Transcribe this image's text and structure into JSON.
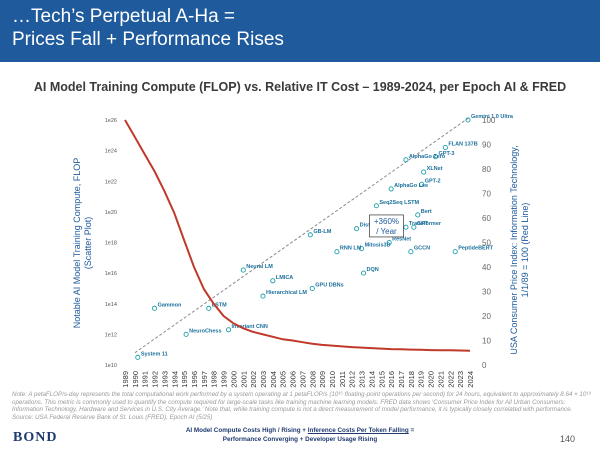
{
  "header": {
    "line1": "…Tech’s Perpetual A-Ha =",
    "line2": "Prices Fall + Performance Rises",
    "bg_color": "#1e5a9c"
  },
  "chart_data": {
    "type": "scatter",
    "title": "AI Model Training Compute (FLOP) vs. Relative IT Cost – 1989-2024, per Epoch AI & FRED",
    "ylabel_left": [
      "Notable AI Model Training Compute, FLOP",
      "(Scatter Plot)"
    ],
    "ylabel_right": [
      "USA Consumer Price Index: Information Technology,",
      "1/1/89 = 100 (Red Line)"
    ],
    "x_categories": [
      "1989",
      "1990",
      "1991",
      "1992",
      "1993",
      "1994",
      "1995",
      "1996",
      "1997",
      "1998",
      "1999",
      "2000",
      "2001",
      "2002",
      "2003",
      "2004",
      "2005",
      "2006",
      "2007",
      "2008",
      "2009",
      "2010",
      "2011",
      "2012",
      "2013",
      "2014",
      "2015",
      "2016",
      "2017",
      "2018",
      "2019",
      "2020",
      "2021",
      "2022",
      "2023",
      "2024"
    ],
    "y_left_ticks": [
      "1e10",
      "1e12",
      "1e14",
      "1e16",
      "1e18",
      "1e20",
      "1e22",
      "1e24",
      "1e26"
    ],
    "y_left_exponents": [
      10,
      12,
      14,
      16,
      18,
      20,
      22,
      24,
      26
    ],
    "y_right_ticks": [
      0,
      10,
      20,
      30,
      40,
      50,
      60,
      70,
      80,
      90,
      100
    ],
    "y_right_range": [
      0,
      100
    ],
    "cpi_series": {
      "name": "USA Consumer Price Index: Information Technology (1/1/89 = 100)",
      "color": "#c0392b",
      "values": [
        100,
        93,
        86,
        79,
        71,
        62,
        51,
        40,
        31,
        25,
        20,
        17,
        15,
        13.5,
        12.5,
        11.5,
        10.5,
        10,
        9.3,
        8.7,
        8.2,
        7.9,
        7.6,
        7.3,
        7.1,
        6.9,
        6.7,
        6.5,
        6.4,
        6.3,
        6.2,
        6.1,
        6.0,
        6.0,
        5.9,
        5.8
      ]
    },
    "labeled_models": [
      {
        "name": "System 11",
        "year": 1990.3,
        "log_flop": 10.5
      },
      {
        "name": "NeuroChess",
        "year": 1995.2,
        "log_flop": 12.0
      },
      {
        "name": "Gammon",
        "year": 1992.0,
        "log_flop": 13.7
      },
      {
        "name": "LSTM",
        "year": 1997.5,
        "log_flop": 13.7
      },
      {
        "name": "Invariant CNN",
        "year": 1999.5,
        "log_flop": 12.3
      },
      {
        "name": "Hierarchical LM",
        "year": 2003.0,
        "log_flop": 14.5
      },
      {
        "name": "Neural LM",
        "year": 2001.0,
        "log_flop": 16.2
      },
      {
        "name": "LMICA",
        "year": 2004.0,
        "log_flop": 15.5
      },
      {
        "name": "GPU DBNs",
        "year": 2008.0,
        "log_flop": 15.0
      },
      {
        "name": "RNN LM",
        "year": 2010.5,
        "log_flop": 17.4
      },
      {
        "name": "GB-LM",
        "year": 2007.8,
        "log_flop": 18.5
      },
      {
        "name": "DistBelief NNLM",
        "year": 2012.5,
        "log_flop": 18.9
      },
      {
        "name": "Seq2Seq LSTM",
        "year": 2014.5,
        "log_flop": 20.4
      },
      {
        "name": "AlphaGo Lee",
        "year": 2016.0,
        "log_flop": 21.5
      },
      {
        "name": "AlphaGo Zero",
        "year": 2017.5,
        "log_flop": 23.4
      },
      {
        "name": "Gemini 1.0 Ultra",
        "year": 2023.8,
        "log_flop": 26.0
      },
      {
        "name": "FLAN 137B",
        "year": 2021.5,
        "log_flop": 24.2
      },
      {
        "name": "GPT-3",
        "year": 2020.5,
        "log_flop": 23.6
      },
      {
        "name": "XLNet",
        "year": 2019.3,
        "log_flop": 22.6
      },
      {
        "name": "GPT-2",
        "year": 2019.1,
        "log_flop": 21.8
      },
      {
        "name": "Mitosis3D",
        "year": 2013.0,
        "log_flop": 17.6
      },
      {
        "name": "Transformer",
        "year": 2017.5,
        "log_flop": 19.0
      },
      {
        "name": "GPT",
        "year": 2018.3,
        "log_flop": 19.0
      },
      {
        "name": "PeptideBERT",
        "year": 2022.5,
        "log_flop": 17.4
      },
      {
        "name": "GCCN",
        "year": 2018.0,
        "log_flop": 17.4
      },
      {
        "name": "Bert",
        "year": 2018.7,
        "log_flop": 19.8
      },
      {
        "name": "ResNet",
        "year": 2015.8,
        "log_flop": 18.0
      },
      {
        "name": "DQN",
        "year": 2013.2,
        "log_flop": 16.0
      }
    ],
    "annotation": {
      "line1": "+360%",
      "line2": "/ Year"
    },
    "marker_color": "#1a9eab",
    "trend_color": "#8a8a8a"
  },
  "note": "Note: A petaFLOP/s-day represents the total computational work performed by a system operating at 1 petaFLOP/s (10¹⁵ floating-point operations per second) for 24 hours, equivalent to approximately 8.64 × 10¹⁹ operations. This metric is commonly used to quantify the compute required for large-scale tasks like training machine learning models. FRED data shows ‘Consumer Price Index for All Urban Consumers: Information Technology, Hardware and Services in U.S. City Average.’ Note that, while training compute is not a direct measurement of model performance, it is typically closely correlated with performance. Source: USA Federal Reserve Bank of St. Louis (FRED), Epoch AI (5/25)",
  "footer": {
    "brand": "BOND",
    "center_prefix": "AI Model Compute Costs High / Rising + ",
    "center_underlined": "Inference Costs Per Token Falling",
    "center_suffix": " =",
    "center_line2": "Performance Converging + Developer Usage Rising",
    "page": "140"
  }
}
